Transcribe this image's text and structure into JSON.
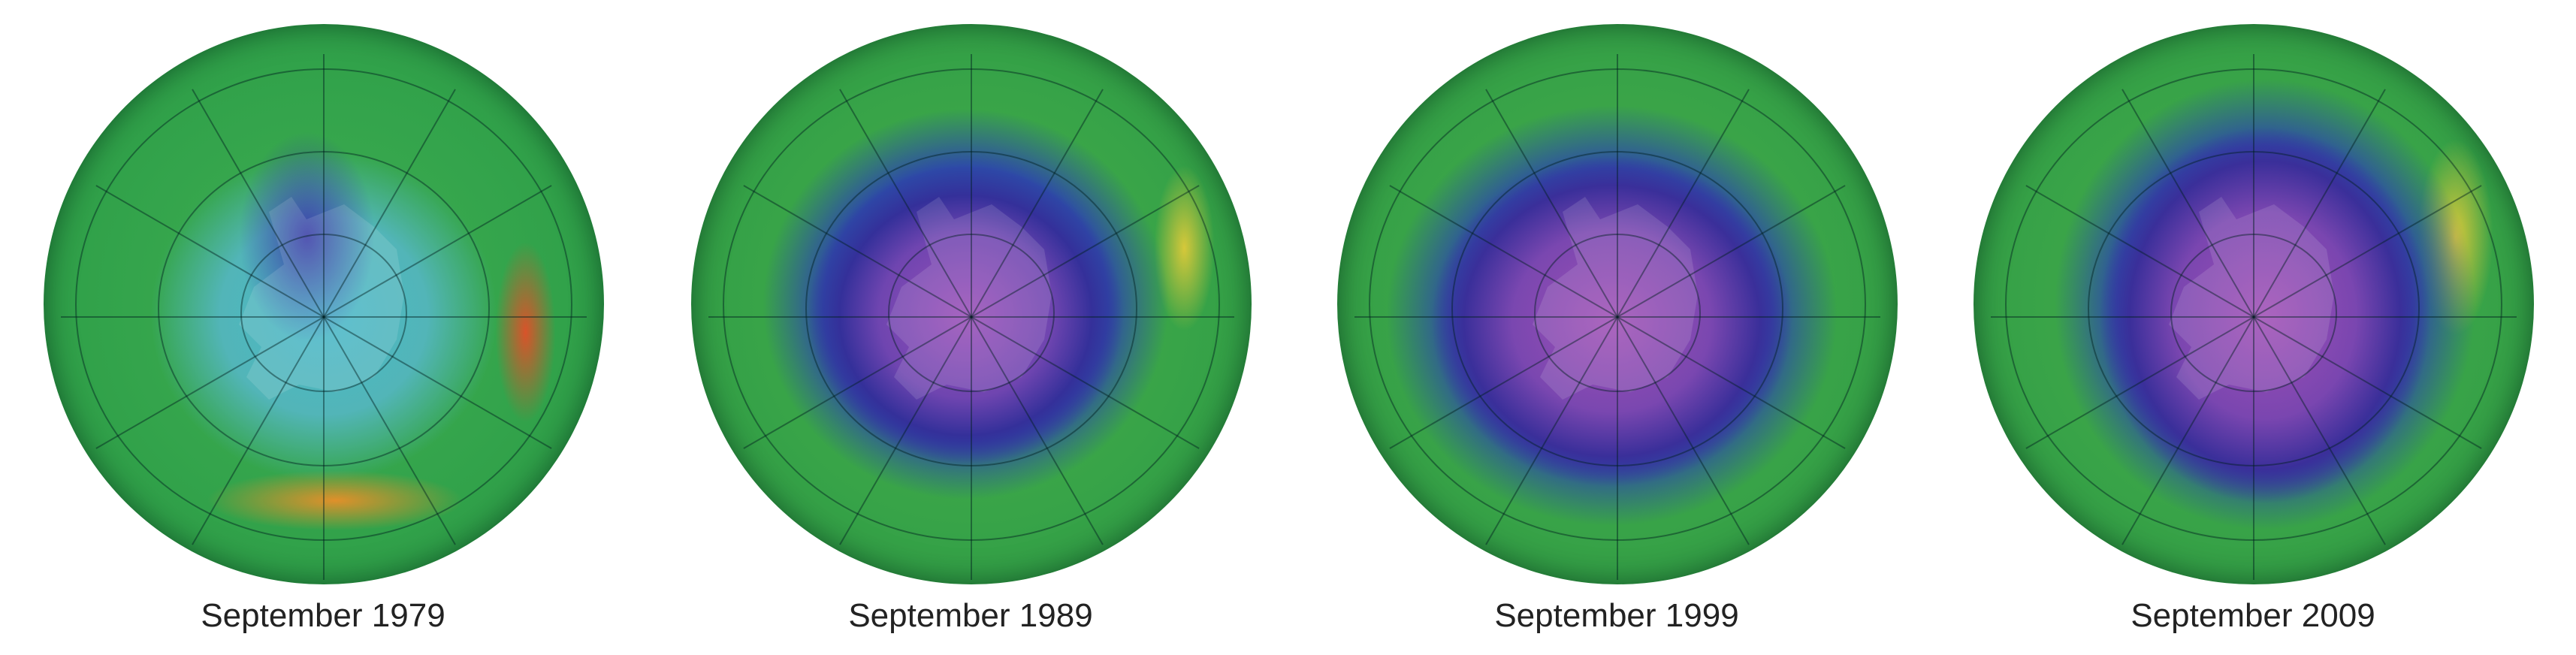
{
  "panels": [
    {
      "label": "September 1979"
    },
    {
      "label": "September 1989"
    },
    {
      "label": "September 1999"
    },
    {
      "label": "September 2009"
    }
  ]
}
